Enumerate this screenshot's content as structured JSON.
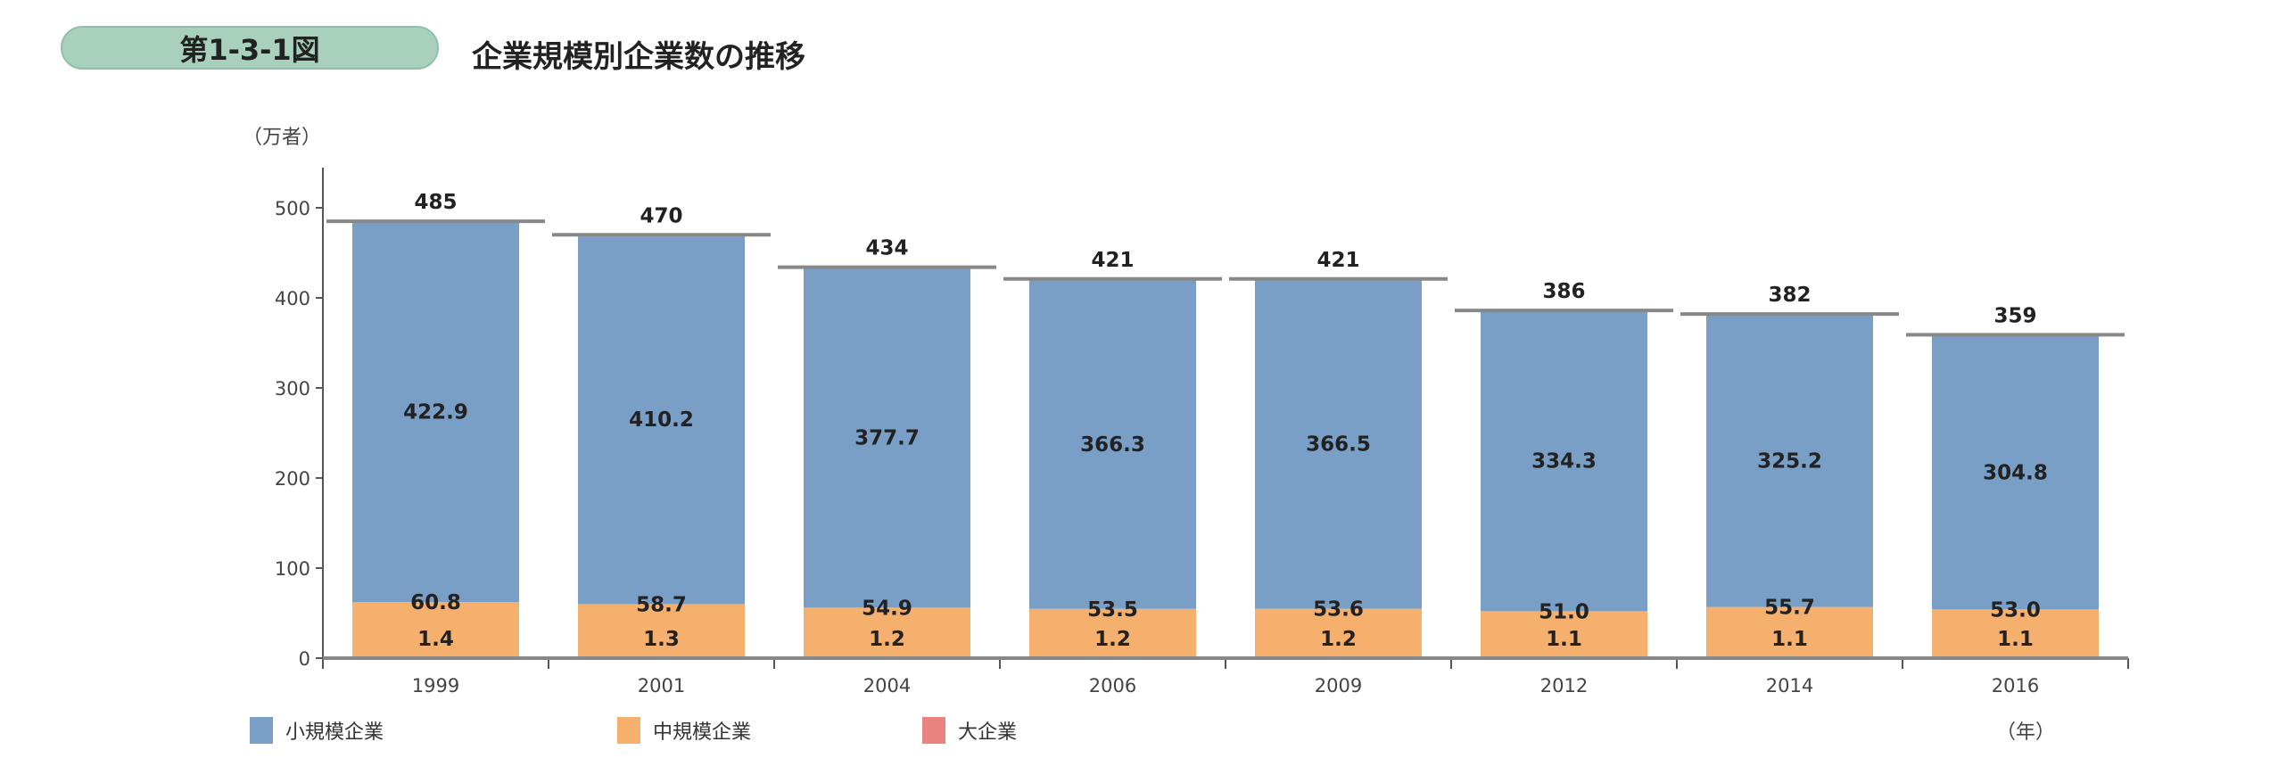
{
  "header": {
    "figure_number": "第1-3-1図",
    "title": "企業規模別企業数の推移"
  },
  "chart_data": {
    "type": "bar",
    "stacked": true,
    "title": "企業規模別企業数の推移",
    "ylabel": "（万者）",
    "xlabel": "（年）",
    "ylim": [
      0,
      500
    ],
    "yticks": [
      0,
      100,
      200,
      300,
      400,
      500
    ],
    "grid": false,
    "legend_placement": "bottom",
    "categories": [
      "1999",
      "2001",
      "2004",
      "2006",
      "2009",
      "2012",
      "2014",
      "2016"
    ],
    "series": [
      {
        "name": "大企業",
        "color": "#e8837f",
        "values": [
          1.4,
          1.3,
          1.2,
          1.2,
          1.2,
          1.1,
          1.1,
          1.1
        ]
      },
      {
        "name": "中規模企業",
        "color": "#f5b06e",
        "values": [
          60.8,
          58.7,
          54.9,
          53.5,
          53.6,
          51.0,
          55.7,
          53.0
        ]
      },
      {
        "name": "小規模企業",
        "color": "#7a9fc6",
        "values": [
          422.9,
          410.2,
          377.7,
          366.3,
          366.5,
          334.3,
          325.2,
          304.8
        ]
      }
    ],
    "totals": [
      485,
      470,
      434,
      421,
      421,
      386,
      382,
      359
    ]
  }
}
